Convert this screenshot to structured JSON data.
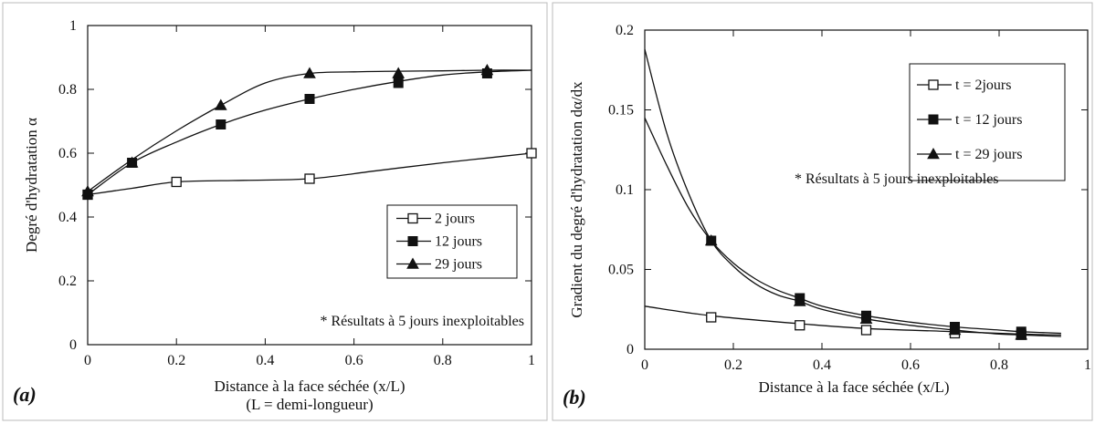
{
  "chart_data": [
    {
      "type": "line",
      "panel_label": "(a)",
      "xlabel": "Distance à la face séchée (x/L)",
      "xlabel2": "(L = demi-longueur)",
      "ylabel": "Degré d'hydratation α",
      "xlim": [
        0,
        1
      ],
      "ylim": [
        0,
        1
      ],
      "xticks": [
        "0",
        "0.2",
        "0.4",
        "0.6",
        "0.8",
        "1"
      ],
      "yticks": [
        "0",
        "0.2",
        "0.4",
        "0.6",
        "0.8",
        "1"
      ],
      "legend_position": "center-right",
      "note": "* Résultats à 5 jours inexploitables",
      "series": [
        {
          "name": "2 jours",
          "marker": "open-square",
          "points": [
            [
              0,
              0.47
            ],
            [
              0.2,
              0.51
            ],
            [
              0.5,
              0.52
            ],
            [
              1.0,
              0.6
            ]
          ],
          "curve": [
            [
              0,
              0.47
            ],
            [
              0.1,
              0.49
            ],
            [
              0.2,
              0.51
            ],
            [
              0.35,
              0.515
            ],
            [
              0.5,
              0.52
            ],
            [
              0.65,
              0.545
            ],
            [
              0.8,
              0.57
            ],
            [
              0.9,
              0.585
            ],
            [
              1.0,
              0.6
            ]
          ]
        },
        {
          "name": "12 jours",
          "marker": "filled-square",
          "points": [
            [
              0,
              0.47
            ],
            [
              0.1,
              0.57
            ],
            [
              0.3,
              0.69
            ],
            [
              0.5,
              0.77
            ],
            [
              0.7,
              0.82
            ],
            [
              0.9,
              0.85
            ]
          ],
          "curve": [
            [
              0,
              0.47
            ],
            [
              0.1,
              0.57
            ],
            [
              0.2,
              0.635
            ],
            [
              0.3,
              0.69
            ],
            [
              0.4,
              0.735
            ],
            [
              0.5,
              0.77
            ],
            [
              0.6,
              0.8
            ],
            [
              0.7,
              0.825
            ],
            [
              0.8,
              0.845
            ],
            [
              0.9,
              0.855
            ],
            [
              1.0,
              0.86
            ]
          ]
        },
        {
          "name": "29 jours",
          "marker": "filled-triangle",
          "points": [
            [
              0,
              0.48
            ],
            [
              0.1,
              0.57
            ],
            [
              0.3,
              0.75
            ],
            [
              0.5,
              0.85
            ],
            [
              0.7,
              0.85
            ],
            [
              0.9,
              0.86
            ]
          ],
          "curve": [
            [
              0,
              0.48
            ],
            [
              0.1,
              0.58
            ],
            [
              0.2,
              0.67
            ],
            [
              0.3,
              0.75
            ],
            [
              0.4,
              0.82
            ],
            [
              0.5,
              0.85
            ],
            [
              0.6,
              0.855
            ],
            [
              0.7,
              0.857
            ],
            [
              0.8,
              0.858
            ],
            [
              0.9,
              0.86
            ],
            [
              1.0,
              0.86
            ]
          ]
        }
      ]
    },
    {
      "type": "line",
      "panel_label": "(b)",
      "xlabel": "Distance à la face séchée (x/L)",
      "ylabel": "Gradient du degré d'hydratation dα/dx",
      "xlim": [
        0,
        1
      ],
      "ylim": [
        0,
        0.2
      ],
      "xticks": [
        "0",
        "0.2",
        "0.4",
        "0.6",
        "0.8",
        "1"
      ],
      "yticks": [
        "0",
        "0.05",
        "0.1",
        "0.15",
        "0.2"
      ],
      "legend_position": "top-right",
      "note": "* Résultats à 5 jours inexploitables",
      "series": [
        {
          "name": "t = 2jours",
          "marker": "open-square",
          "points": [
            [
              0.15,
              0.02
            ],
            [
              0.35,
              0.015
            ],
            [
              0.5,
              0.012
            ],
            [
              0.7,
              0.01
            ],
            [
              0.85,
              0.009
            ]
          ],
          "curve": [
            [
              0,
              0.027
            ],
            [
              0.15,
              0.021
            ],
            [
              0.35,
              0.016
            ],
            [
              0.5,
              0.013
            ],
            [
              0.7,
              0.011
            ],
            [
              0.85,
              0.0095
            ],
            [
              0.94,
              0.009
            ]
          ]
        },
        {
          "name": "t = 12 jours",
          "marker": "filled-square",
          "points": [
            [
              0.15,
              0.068
            ],
            [
              0.35,
              0.032
            ],
            [
              0.5,
              0.021
            ],
            [
              0.7,
              0.014
            ],
            [
              0.85,
              0.011
            ]
          ],
          "curve": [
            [
              0,
              0.145
            ],
            [
              0.05,
              0.115
            ],
            [
              0.1,
              0.088
            ],
            [
              0.15,
              0.068
            ],
            [
              0.2,
              0.054
            ],
            [
              0.25,
              0.044
            ],
            [
              0.3,
              0.037
            ],
            [
              0.35,
              0.032
            ],
            [
              0.4,
              0.027
            ],
            [
              0.5,
              0.021
            ],
            [
              0.6,
              0.017
            ],
            [
              0.7,
              0.014
            ],
            [
              0.8,
              0.012
            ],
            [
              0.85,
              0.011
            ],
            [
              0.94,
              0.01
            ]
          ]
        },
        {
          "name": "t = 29 jours",
          "marker": "filled-triangle",
          "points": [
            [
              0.15,
              0.068
            ],
            [
              0.35,
              0.03
            ],
            [
              0.5,
              0.019
            ],
            [
              0.7,
              0.012
            ],
            [
              0.85,
              0.009
            ]
          ],
          "curve": [
            [
              0,
              0.188
            ],
            [
              0.05,
              0.135
            ],
            [
              0.1,
              0.097
            ],
            [
              0.15,
              0.068
            ],
            [
              0.2,
              0.052
            ],
            [
              0.25,
              0.041
            ],
            [
              0.3,
              0.034
            ],
            [
              0.35,
              0.03
            ],
            [
              0.4,
              0.025
            ],
            [
              0.5,
              0.019
            ],
            [
              0.6,
              0.015
            ],
            [
              0.7,
              0.012
            ],
            [
              0.8,
              0.0095
            ],
            [
              0.85,
              0.009
            ],
            [
              0.94,
              0.008
            ]
          ]
        }
      ]
    }
  ]
}
